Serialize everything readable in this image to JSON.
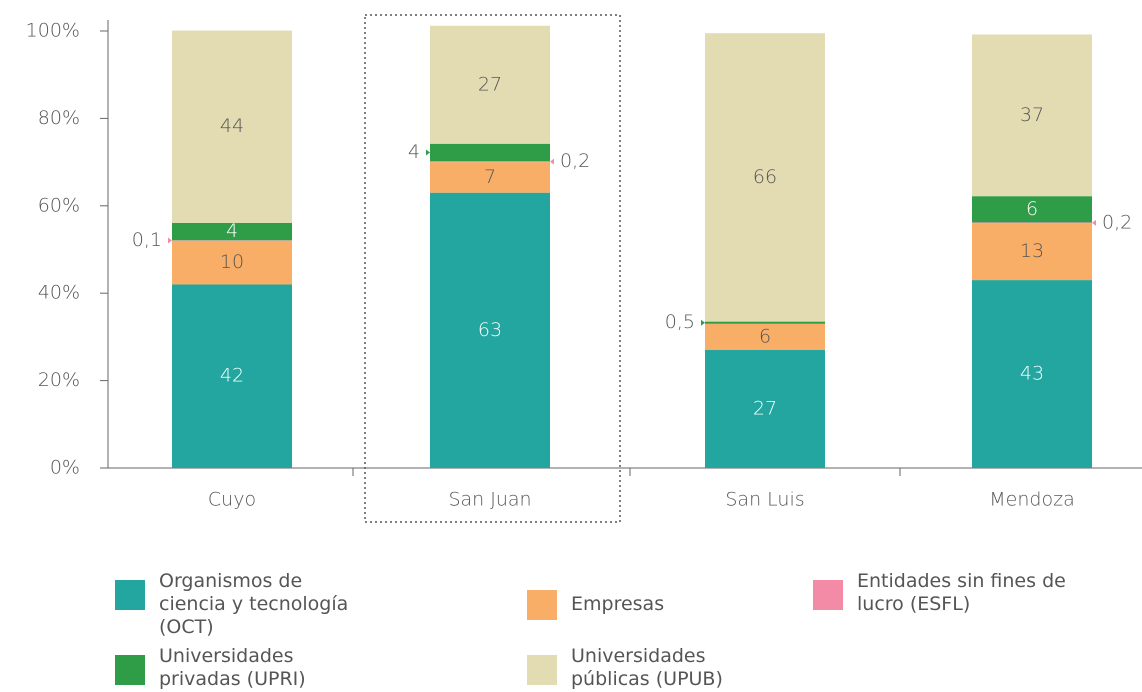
{
  "chart_data": {
    "type": "stacked_bar",
    "categories": [
      "Cuyo",
      "San Juan",
      "San Luis",
      "Mendoza"
    ],
    "series": [
      {
        "name": "Organismos de ciencia y tecnología (OCT)",
        "color": "#22a69f",
        "values": [
          42,
          63,
          27,
          43
        ]
      },
      {
        "name": "Empresas",
        "color": "#f9ae67",
        "values": [
          10,
          7,
          6,
          13
        ]
      },
      {
        "name": "Entidades sin fines de lucro (ESFL)",
        "color": "#f38ba7",
        "values": [
          0.1,
          0.2,
          0,
          0.2
        ],
        "value_labels": [
          "0,1",
          "0,2",
          null,
          "0,2"
        ]
      },
      {
        "name": "Universidades privadas (UPRI)",
        "color": "#2f9d48",
        "values": [
          4,
          4,
          0.5,
          6
        ],
        "value_labels": [
          "4",
          "4",
          "0,5",
          "6"
        ]
      },
      {
        "name": "Universidades públicas (UPUB)",
        "color": "#e3dcb2",
        "values": [
          44,
          27,
          66,
          37
        ]
      }
    ],
    "ylim": [
      0,
      100
    ],
    "yticks": [
      {
        "value": 0,
        "label": "0%"
      },
      {
        "value": 20,
        "label": "20%"
      },
      {
        "value": 40,
        "label": "40%"
      },
      {
        "value": 60,
        "label": "60%"
      },
      {
        "value": 80,
        "label": "80%"
      },
      {
        "value": 100,
        "label": "100%"
      }
    ]
  }
}
